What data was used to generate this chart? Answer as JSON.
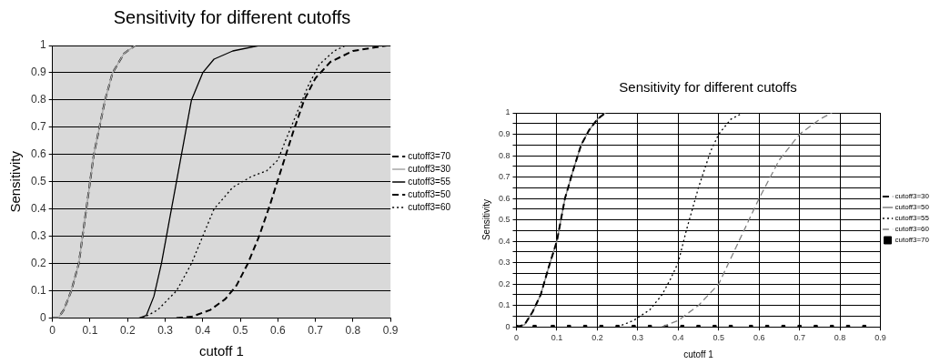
{
  "chart_data": [
    {
      "type": "line",
      "title": "Sensitivity for different cutoffs",
      "xlabel": "cutoff 1",
      "ylabel": "Sensitivity",
      "xlim": [
        0,
        0.9
      ],
      "ylim": [
        0,
        1
      ],
      "xticks": [
        0,
        0.1,
        0.2,
        0.3,
        0.4,
        0.5,
        0.6,
        0.7,
        0.8,
        0.9
      ],
      "yticks": [
        0,
        0.1,
        0.2,
        0.3,
        0.4,
        0.5,
        0.6,
        0.7,
        0.8,
        0.9,
        1
      ],
      "grid": "y",
      "legend": "right",
      "marker": "none",
      "series": [
        {
          "name": "cutoff3=70",
          "color": "#000000",
          "line_style": "dashed",
          "x": [
            0.33,
            0.37,
            0.42,
            0.46,
            0.49,
            0.52,
            0.55,
            0.58,
            0.61,
            0.64,
            0.67,
            0.7,
            0.74,
            0.8,
            0.89
          ],
          "values": [
            0,
            0.005,
            0.03,
            0.07,
            0.12,
            0.2,
            0.3,
            0.42,
            0.55,
            0.68,
            0.8,
            0.88,
            0.94,
            0.98,
            1
          ]
        },
        {
          "name": "cutoff3=30",
          "color": "#a6a6a6",
          "line_style": "solid",
          "x": [
            0,
            0.015,
            0.03,
            0.05,
            0.07,
            0.08,
            0.09,
            0.1,
            0.11,
            0.125,
            0.14,
            0.16,
            0.19,
            0.22
          ],
          "values": [
            0,
            0,
            0.03,
            0.1,
            0.2,
            0.3,
            0.4,
            0.5,
            0.6,
            0.7,
            0.8,
            0.9,
            0.97,
            1
          ]
        },
        {
          "name": "cutoff3=55",
          "color": "#000000",
          "line_style": "solid",
          "x": [
            0,
            0.23,
            0.25,
            0.27,
            0.29,
            0.31,
            0.33,
            0.35,
            0.37,
            0.4,
            0.43,
            0.48,
            0.55
          ],
          "values": [
            0,
            0,
            0.01,
            0.08,
            0.2,
            0.35,
            0.5,
            0.65,
            0.8,
            0.9,
            0.95,
            0.98,
            1
          ]
        },
        {
          "name": "cutoff3=50",
          "color": "#000000",
          "line_style": "dashed",
          "x": [
            0,
            0.015,
            0.03,
            0.05,
            0.07,
            0.08,
            0.09,
            0.1,
            0.11,
            0.125,
            0.14,
            0.16,
            0.19,
            0.22
          ],
          "values": [
            0,
            0,
            0.03,
            0.1,
            0.2,
            0.3,
            0.4,
            0.5,
            0.6,
            0.7,
            0.8,
            0.9,
            0.97,
            1
          ]
        },
        {
          "name": "cutoff3=60",
          "color": "#000000",
          "line_style": "dotted",
          "x": [
            0.24,
            0.28,
            0.33,
            0.37,
            0.4,
            0.43,
            0.48,
            0.53,
            0.57,
            0.6,
            0.62,
            0.65,
            0.68,
            0.71,
            0.75,
            0.78
          ],
          "values": [
            0,
            0.03,
            0.1,
            0.2,
            0.3,
            0.4,
            0.48,
            0.52,
            0.54,
            0.58,
            0.65,
            0.75,
            0.85,
            0.93,
            0.98,
            1
          ]
        }
      ]
    },
    {
      "type": "line",
      "title": "Sensitivity for different cutoffs",
      "xlabel": "cutoff 1",
      "ylabel": "Sensitivity",
      "xlim": [
        0,
        0.9
      ],
      "ylim": [
        0,
        1
      ],
      "xticks": [
        0,
        0.1,
        0.2,
        0.3,
        0.4,
        0.5,
        0.6,
        0.7,
        0.8,
        0.9
      ],
      "yticks": [
        0,
        {
          "value": 0.05,
          "label": null
        },
        0.1,
        {
          "value": 0.15,
          "label": null
        },
        0.2,
        {
          "value": 0.25,
          "label": null
        },
        0.3,
        {
          "value": 0.35,
          "label": null
        },
        0.4,
        {
          "value": 0.45,
          "label": null
        },
        0.5,
        {
          "value": 0.55,
          "label": null
        },
        0.6,
        {
          "value": 0.65,
          "label": null
        },
        0.7,
        {
          "value": 0.75,
          "label": null
        },
        0.8,
        {
          "value": 0.85,
          "label": null
        },
        0.9,
        {
          "value": 0.95,
          "label": null
        },
        1
      ],
      "grid": true,
      "legend": "right",
      "marker": "none",
      "series": [
        {
          "name": "cutoff3=30",
          "color": "#000000",
          "line_style": "dashed",
          "x": [
            0,
            0.02,
            0.04,
            0.06,
            0.08,
            0.1,
            0.12,
            0.14,
            0.16,
            0.18,
            0.2,
            0.22
          ],
          "values": [
            0,
            0.01,
            0.07,
            0.15,
            0.28,
            0.4,
            0.6,
            0.73,
            0.85,
            0.92,
            0.97,
            1
          ]
        },
        {
          "name": "cutoff3=50",
          "color": "#808080",
          "line_style": "solid",
          "x": [
            0,
            0.02,
            0.04,
            0.06,
            0.08,
            0.1,
            0.12,
            0.14,
            0.16,
            0.18,
            0.2,
            0.22
          ],
          "values": [
            0,
            0.01,
            0.07,
            0.15,
            0.28,
            0.4,
            0.6,
            0.73,
            0.85,
            0.92,
            0.97,
            1
          ]
        },
        {
          "name": "cutoff3=55",
          "color": "#000000",
          "line_style": "dotted",
          "x": [
            0.25,
            0.29,
            0.33,
            0.36,
            0.38,
            0.4,
            0.42,
            0.45,
            0.48,
            0.5,
            0.53,
            0.56
          ],
          "values": [
            0,
            0.03,
            0.08,
            0.15,
            0.22,
            0.3,
            0.45,
            0.65,
            0.82,
            0.9,
            0.97,
            1
          ]
        },
        {
          "name": "cutoff3=60",
          "color": "#808080",
          "line_style": "dashed",
          "x": [
            0.36,
            0.4,
            0.45,
            0.5,
            0.55,
            0.6,
            0.65,
            0.7,
            0.75,
            0.78
          ],
          "values": [
            0,
            0.03,
            0.1,
            0.2,
            0.4,
            0.6,
            0.78,
            0.9,
            0.97,
            1
          ]
        },
        {
          "name": "cutoff3=70",
          "color": "#000000",
          "type": "scatter",
          "marker": "square",
          "x": [
            0,
            0.045,
            0.09,
            0.13,
            0.17,
            0.21,
            0.25,
            0.29,
            0.33,
            0.37,
            0.41,
            0.45,
            0.49,
            0.53,
            0.58,
            0.62,
            0.66,
            0.7,
            0.74,
            0.78,
            0.82,
            0.86
          ],
          "values": [
            0,
            0,
            0,
            0,
            0,
            0,
            0,
            0,
            0,
            0,
            0,
            0,
            0,
            0,
            0,
            0,
            0,
            0,
            0,
            0,
            0,
            0
          ]
        }
      ]
    }
  ]
}
